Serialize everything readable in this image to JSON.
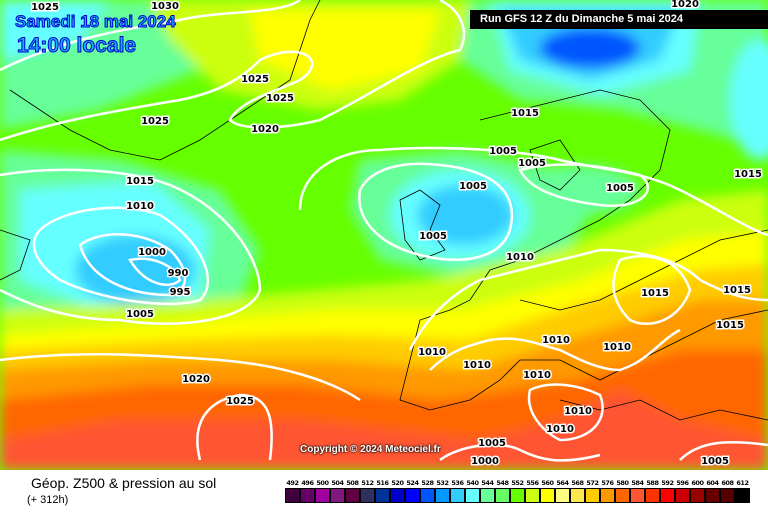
{
  "header": {
    "date": "Samedi 18 mai 2024",
    "time": "14:00 locale",
    "run": "Run GFS 12 Z du Dimanche 5 mai 2024"
  },
  "copyright": "Copyright © 2024 Meteociel.fr",
  "footer": {
    "title": "Géop. Z500 & pression au sol",
    "subtitle": "(+ 312h)"
  },
  "legend": {
    "labels": [
      "492",
      "496",
      "500",
      "504",
      "508",
      "512",
      "516",
      "520",
      "524",
      "528",
      "532",
      "536",
      "540",
      "544",
      "548",
      "552",
      "556",
      "560",
      "564",
      "568",
      "572",
      "576",
      "580",
      "584",
      "588",
      "592",
      "596",
      "600",
      "604",
      "608",
      "612"
    ],
    "colors": [
      "#400040",
      "#660066",
      "#a000a0",
      "#801880",
      "#600040",
      "#303060",
      "#003399",
      "#0000cc",
      "#0000ff",
      "#0055ff",
      "#0099ff",
      "#33ccff",
      "#66ffff",
      "#66ff99",
      "#66ff66",
      "#66ff00",
      "#ccff11",
      "#ffff00",
      "#ffff80",
      "#ffe84d",
      "#ffcc00",
      "#ff9900",
      "#ff6600",
      "#ff5533",
      "#ff3300",
      "#ff0000",
      "#cc0000",
      "#990000",
      "#660000",
      "#550000",
      "#000000"
    ]
  },
  "isobars": [
    "1025",
    "1030",
    "1025",
    "1025",
    "1025",
    "1020",
    "1015",
    "1020",
    "1005",
    "1005",
    "1005",
    "1005",
    "1015",
    "1015",
    "1010",
    "1000",
    "990",
    "995",
    "1005",
    "1005",
    "1010",
    "1015",
    "1015",
    "1015",
    "1010",
    "1010",
    "1010",
    "1010",
    "1010",
    "1020",
    "1025",
    "1010",
    "1010",
    "1005",
    "1000",
    "1005"
  ]
}
